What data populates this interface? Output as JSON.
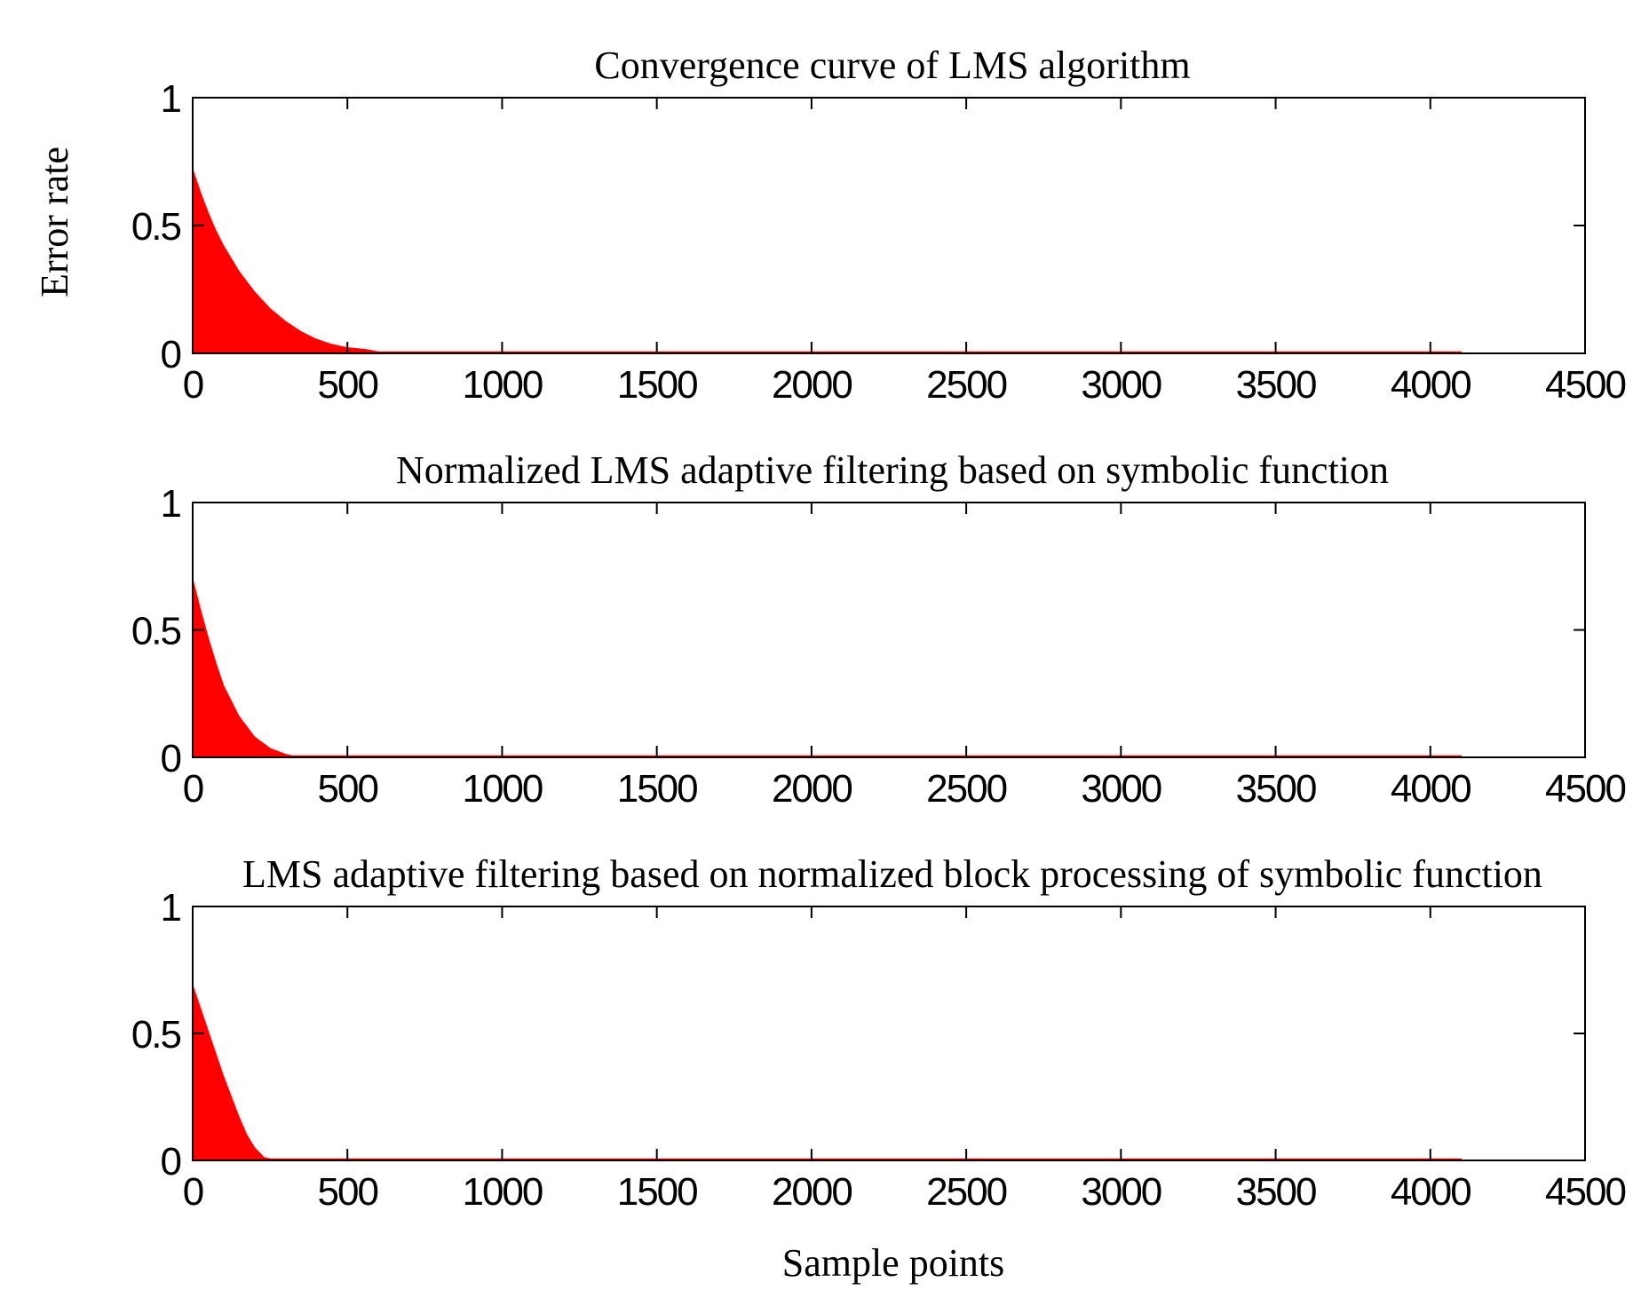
{
  "chart_data": {
    "type": "area",
    "figure_xlabel": "Sample points",
    "figure_ylabel": "Error rate",
    "colors": {
      "fill": "#ff0000",
      "axes": "#000000",
      "background": "#ffffff"
    },
    "panels": [
      {
        "title": "Convergence curve of LMS algorithm",
        "xlim": [
          0,
          4500
        ],
        "ylim": [
          0,
          1
        ],
        "xticks": [
          0,
          500,
          1000,
          1500,
          2000,
          2500,
          3000,
          3500,
          4000,
          4500
        ],
        "yticks": [
          0,
          0.5,
          1
        ],
        "series": [
          {
            "name": "error",
            "x": [
              0,
              25,
              50,
              75,
              100,
              150,
              200,
              250,
              300,
              350,
              400,
              450,
              500,
              560,
              600,
              4100
            ],
            "y": [
              0.72,
              0.63,
              0.55,
              0.48,
              0.42,
              0.32,
              0.24,
              0.175,
              0.125,
              0.085,
              0.055,
              0.035,
              0.022,
              0.015,
              0.006,
              0.006
            ]
          }
        ]
      },
      {
        "title": "Normalized LMS adaptive filtering based on symbolic function",
        "xlim": [
          0,
          4500
        ],
        "ylim": [
          0,
          1
        ],
        "xticks": [
          0,
          500,
          1000,
          1500,
          2000,
          2500,
          3000,
          3500,
          4000,
          4500
        ],
        "yticks": [
          0,
          0.5,
          1
        ],
        "series": [
          {
            "name": "error",
            "x": [
              0,
              25,
              50,
              75,
              100,
              150,
              200,
              250,
              300,
              320,
              4100
            ],
            "y": [
              0.7,
              0.58,
              0.47,
              0.37,
              0.28,
              0.16,
              0.08,
              0.035,
              0.012,
              0.006,
              0.006
            ]
          }
        ]
      },
      {
        "title": "LMS adaptive filtering based on normalized block processing of symbolic function",
        "xlim": [
          0,
          4500
        ],
        "ylim": [
          0,
          1
        ],
        "xticks": [
          0,
          500,
          1000,
          1500,
          2000,
          2500,
          3000,
          3500,
          4000,
          4500
        ],
        "yticks": [
          0,
          0.5,
          1
        ],
        "series": [
          {
            "name": "error",
            "x": [
              0,
              25,
              50,
              75,
              100,
              125,
              150,
              175,
              200,
              230,
              250,
              4100
            ],
            "y": [
              0.69,
              0.6,
              0.51,
              0.42,
              0.33,
              0.25,
              0.17,
              0.1,
              0.05,
              0.012,
              0.006,
              0.006
            ]
          }
        ]
      }
    ]
  }
}
